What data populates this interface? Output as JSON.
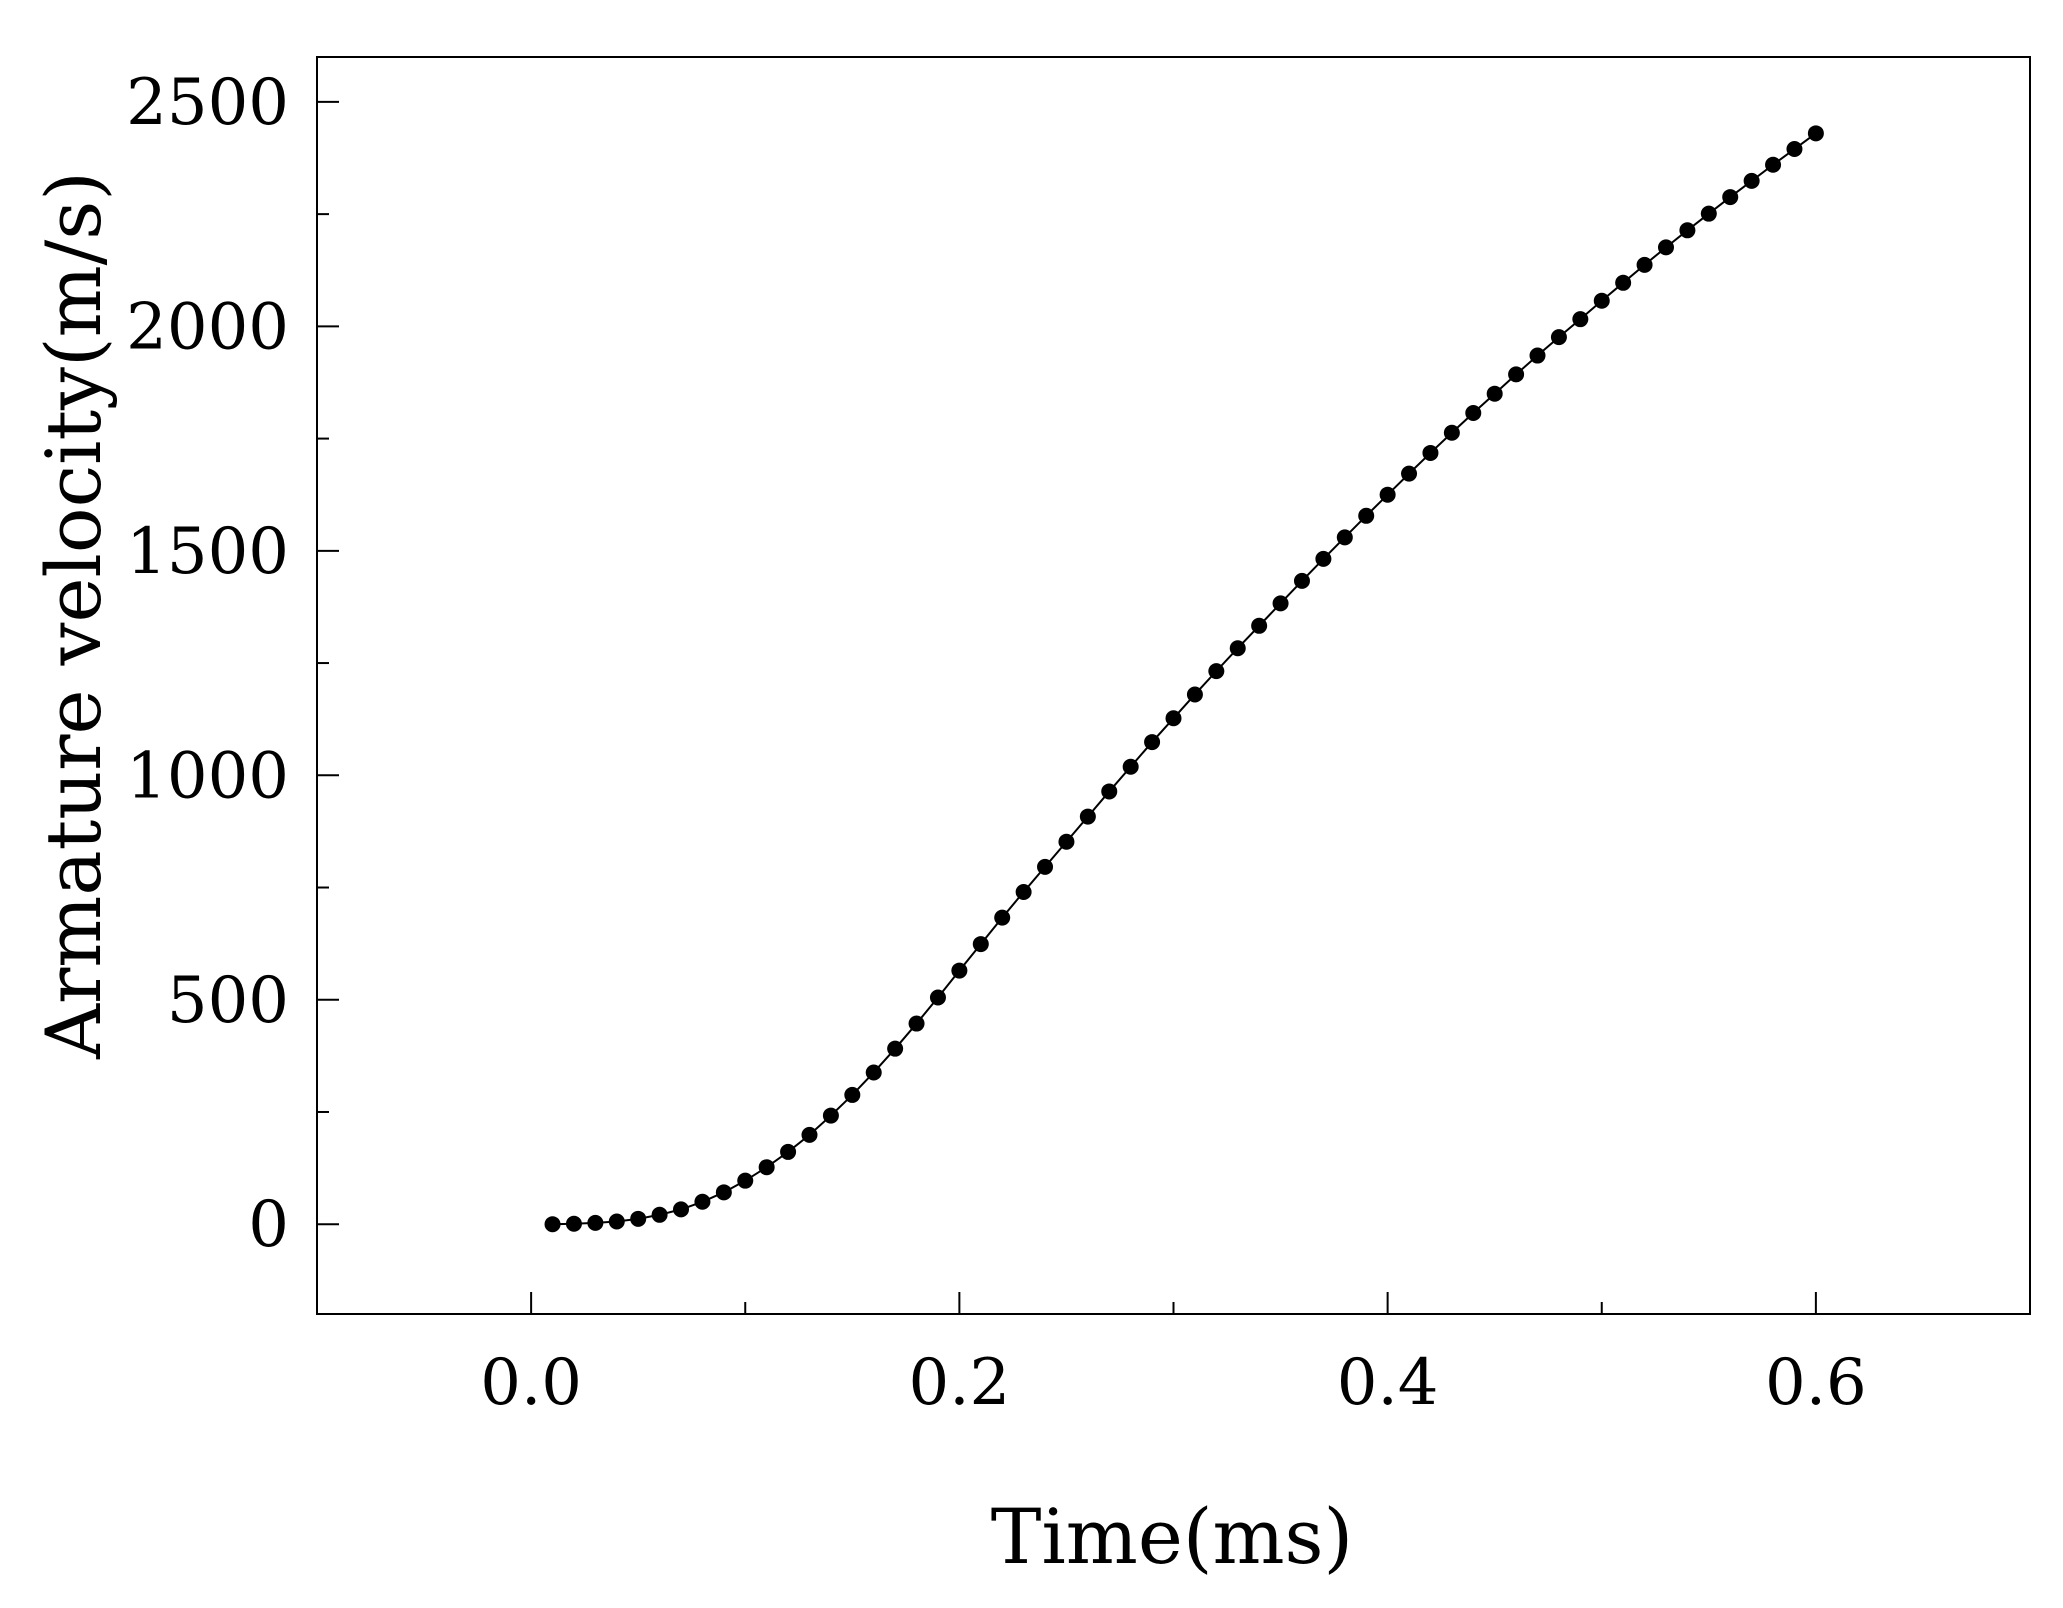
{
  "chart_data": {
    "type": "line",
    "xlabel": "Time(ms)",
    "ylabel": "Armature velocity(m/s)",
    "xlim": [
      -0.1,
      0.7
    ],
    "ylim": [
      -200,
      2600
    ],
    "x_ticks": [
      0.0,
      0.2,
      0.4,
      0.6
    ],
    "x_tick_labels": [
      "0.0",
      "0.2",
      "0.4",
      "0.6"
    ],
    "x_minor_ticks": [
      0.1,
      0.3,
      0.5
    ],
    "y_ticks": [
      0,
      500,
      1000,
      1500,
      2000,
      2500
    ],
    "y_tick_labels": [
      "0",
      "500",
      "1000",
      "1500",
      "2000",
      "2500"
    ],
    "y_minor_ticks": [
      250,
      750,
      1250,
      1750,
      2250
    ],
    "grid": false,
    "series": [
      {
        "color": "#000000",
        "marker": "circle",
        "x": [
          0.01,
          0.02,
          0.03,
          0.04,
          0.05,
          0.06,
          0.07,
          0.08,
          0.09,
          0.1,
          0.11,
          0.12,
          0.13,
          0.14,
          0.15,
          0.16,
          0.17,
          0.18,
          0.19,
          0.2,
          0.21,
          0.22,
          0.23,
          0.24,
          0.25,
          0.26,
          0.27,
          0.28,
          0.29,
          0.3,
          0.31,
          0.32,
          0.33,
          0.34,
          0.35,
          0.36,
          0.37,
          0.38,
          0.39,
          0.4,
          0.41,
          0.42,
          0.43,
          0.44,
          0.45,
          0.46,
          0.47,
          0.48,
          0.49,
          0.5,
          0.51,
          0.52,
          0.53,
          0.54,
          0.55,
          0.56,
          0.57,
          0.58,
          0.59,
          0.6
        ],
        "y": [
          0,
          1,
          3,
          6,
          12,
          21,
          33,
          50,
          71,
          97,
          127,
          161,
          199,
          242,
          288,
          338,
          391,
          447,
          505,
          565,
          624,
          683,
          740,
          796,
          852,
          908,
          964,
          1019,
          1074,
          1127,
          1180,
          1232,
          1283,
          1333,
          1383,
          1433,
          1482,
          1530,
          1578,
          1625,
          1672,
          1718,
          1763,
          1807,
          1850,
          1893,
          1935,
          1976,
          2016,
          2057,
          2097,
          2137,
          2176,
          2214,
          2251,
          2288,
          2324,
          2360,
          2395,
          2430
        ]
      }
    ]
  }
}
